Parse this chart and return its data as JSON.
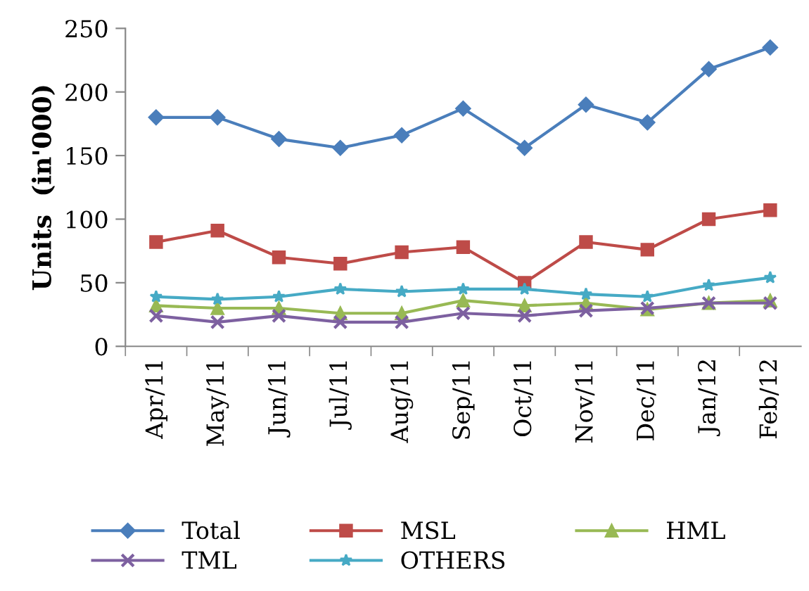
{
  "chart_data": {
    "type": "line",
    "ylabel": "Units  (in'000)",
    "categories": [
      "Apr/11",
      "May/11",
      "Jun/11",
      "Jul/11",
      "Aug/11",
      "Sep/11",
      "Oct/11",
      "Nov/11",
      "Dec/11",
      "Jan/12",
      "Feb/12"
    ],
    "series": [
      {
        "name": "Total",
        "color": "#4a7ebb",
        "marker": "diamond",
        "values": [
          180,
          180,
          163,
          156,
          166,
          187,
          156,
          190,
          176,
          218,
          235
        ]
      },
      {
        "name": "MSL",
        "color": "#be4b48",
        "marker": "square",
        "values": [
          82,
          91,
          70,
          65,
          74,
          78,
          50,
          82,
          76,
          100,
          107
        ]
      },
      {
        "name": "HML",
        "color": "#98b954",
        "marker": "triangle",
        "values": [
          32,
          30,
          30,
          26,
          26,
          36,
          32,
          34,
          29,
          34,
          36
        ]
      },
      {
        "name": "TML",
        "color": "#7d60a0",
        "marker": "cross",
        "values": [
          24,
          19,
          24,
          19,
          19,
          26,
          24,
          28,
          30,
          34,
          34
        ]
      },
      {
        "name": "OTHERS",
        "color": "#46aac5",
        "marker": "star",
        "values": [
          39,
          37,
          39,
          45,
          43,
          45,
          45,
          41,
          39,
          48,
          54
        ]
      }
    ],
    "ylim": [
      0,
      250
    ],
    "yticks": [
      0,
      50,
      100,
      150,
      200,
      250
    ],
    "grid": false,
    "legend": "bottom"
  }
}
